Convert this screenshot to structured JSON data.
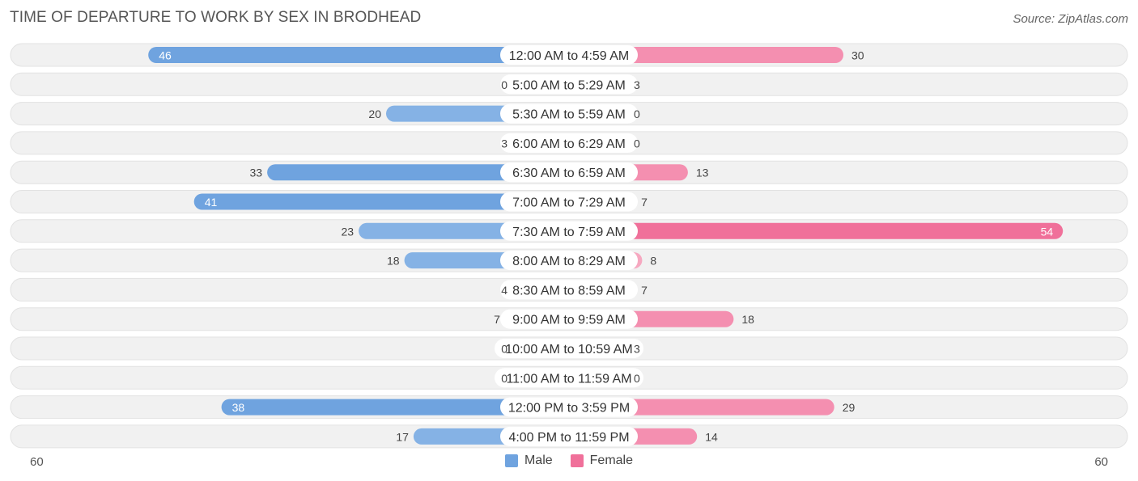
{
  "title": "TIME OF DEPARTURE TO WORK BY SEX IN BRODHEAD",
  "source": "Source: ZipAtlas.com",
  "colors": {
    "male_strong": "#6fa3df",
    "male_light": "#a9c8ec",
    "female_strong": "#f0709a",
    "female_light": "#f6a8c0",
    "row_bg": "#f0f0f0"
  },
  "chart_data": {
    "type": "bar",
    "orientation": "horizontal-diverging",
    "categories": [
      "12:00 AM to 4:59 AM",
      "5:00 AM to 5:29 AM",
      "5:30 AM to 5:59 AM",
      "6:00 AM to 6:29 AM",
      "6:30 AM to 6:59 AM",
      "7:00 AM to 7:29 AM",
      "7:30 AM to 7:59 AM",
      "8:00 AM to 8:29 AM",
      "8:30 AM to 8:59 AM",
      "9:00 AM to 9:59 AM",
      "10:00 AM to 10:59 AM",
      "11:00 AM to 11:59 AM",
      "12:00 PM to 3:59 PM",
      "4:00 PM to 11:59 PM"
    ],
    "series": [
      {
        "name": "Male",
        "values": [
          46,
          0,
          20,
          3,
          33,
          41,
          23,
          18,
          4,
          7,
          0,
          0,
          38,
          17
        ]
      },
      {
        "name": "Female",
        "values": [
          30,
          3,
          0,
          0,
          13,
          7,
          54,
          8,
          7,
          18,
          3,
          0,
          29,
          14
        ]
      }
    ],
    "axis_min_label": "60",
    "axis_max_label": "60",
    "xlim": [
      -60,
      60
    ],
    "legend": "bottom-center"
  }
}
